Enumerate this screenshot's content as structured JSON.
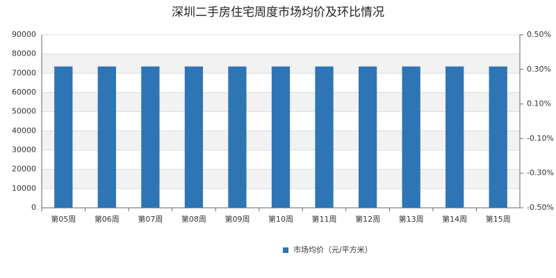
{
  "chart_data": {
    "type": "bar",
    "title": "深圳二手房住宅周度市场均价及环比情况",
    "categories": [
      "第05周",
      "第06周",
      "第07周",
      "第08周",
      "第09周",
      "第10周",
      "第11周",
      "第12周",
      "第13周",
      "第14周",
      "第15周"
    ],
    "series": [
      {
        "name": "市场均价（元/平方米）",
        "color": "#2e75b6",
        "values": [
          73500,
          73500,
          73500,
          73500,
          73500,
          73500,
          73500,
          73500,
          73500,
          73500,
          73500
        ]
      }
    ],
    "ylim": [
      0,
      90000
    ],
    "yticks": [
      0,
      10000,
      20000,
      30000,
      40000,
      50000,
      60000,
      70000,
      80000,
      90000
    ],
    "y2lim": [
      -0.5,
      0.5
    ],
    "y2ticks": [
      {
        "value": -0.5,
        "label": "-0.50%"
      },
      {
        "value": -0.3,
        "label": "-0.30%"
      },
      {
        "value": -0.1,
        "label": "-0.10%"
      },
      {
        "value": 0.1,
        "label": "0.10%"
      },
      {
        "value": 0.3,
        "label": "0.30%"
      },
      {
        "value": 0.5,
        "label": "0.50%"
      }
    ],
    "grid": true
  }
}
